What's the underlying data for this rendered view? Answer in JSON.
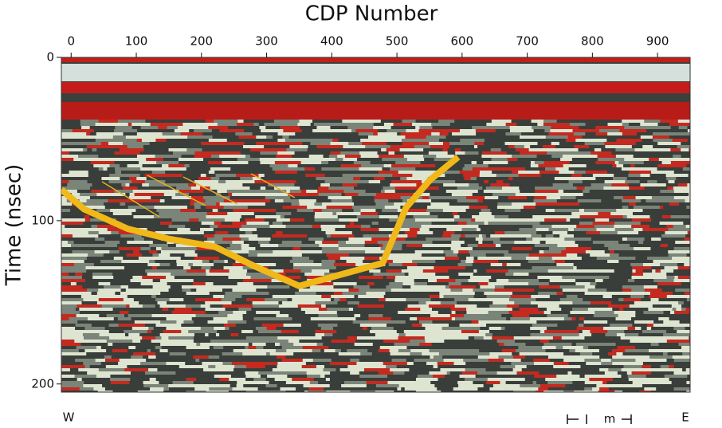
{
  "chart_data": {
    "type": "line",
    "x_label": "CDP Number",
    "y_label": "Time (nsec)",
    "x": [
      -15,
      20,
      87,
      148,
      221,
      282,
      350,
      478,
      514,
      551,
      594
    ],
    "values": [
      81,
      93,
      105,
      111,
      116,
      128,
      140,
      126,
      92,
      75,
      61
    ],
    "color": "#f0b818",
    "xlim": [
      -15,
      950
    ],
    "xticks": [
      0,
      100,
      200,
      300,
      400,
      500,
      600,
      700,
      800,
      900
    ],
    "ylim": [
      0,
      205
    ],
    "yticks": [
      0,
      100,
      200
    ],
    "y_inverted": true,
    "west_label": "W",
    "east_label": "E",
    "scale_unit": "m"
  }
}
